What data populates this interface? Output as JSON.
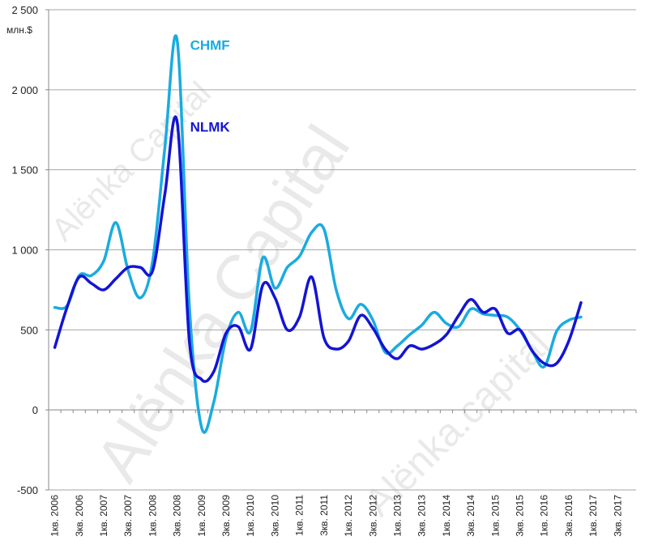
{
  "chart_data": {
    "type": "line",
    "unit_label": "млн.$",
    "watermark": [
      "Alёnka Capital",
      "Alёnka Capital",
      "Alёnka.capital"
    ],
    "ylim": [
      -500,
      2500
    ],
    "y_ticks": [
      -500,
      0,
      500,
      1000,
      1500,
      2000,
      2500
    ],
    "y_tick_labels": [
      "-500",
      "0",
      "500",
      "1 000",
      "1 500",
      "2 000",
      "2 500"
    ],
    "categories": [
      "1кв. 2006",
      "3кв. 2006",
      "1кв. 2007",
      "3кв. 2007",
      "1кв. 2008",
      "3кв. 2008",
      "1кв. 2009",
      "3кв. 2009",
      "1кв. 2010",
      "3кв. 2010",
      "1кв. 2011",
      "3кв. 2011",
      "1кв. 2012",
      "3кв. 2012",
      "1кв. 2013",
      "3кв. 2013",
      "1кв. 2014",
      "3кв. 2014",
      "1кв. 2015",
      "3кв. 2015",
      "1кв. 2016",
      "3кв. 2016",
      "1кв. 2017",
      "3кв. 2017"
    ],
    "x_count": 48,
    "grid": "horizontal",
    "series": [
      {
        "name": "CHMF",
        "color": "#1aabe0",
        "x": [
          0,
          1,
          2,
          3,
          4,
          5,
          6,
          7,
          8,
          9,
          10,
          11,
          12,
          13,
          14,
          15,
          16,
          17,
          18,
          19,
          20,
          21,
          22,
          23,
          24,
          25,
          26,
          27,
          28,
          29,
          30,
          31,
          32,
          33,
          34,
          35,
          36,
          37,
          38,
          39,
          40,
          41,
          42,
          43
        ],
        "values": [
          640,
          650,
          840,
          840,
          930,
          1170,
          870,
          700,
          930,
          1640,
          2310,
          650,
          -110,
          50,
          450,
          610,
          490,
          950,
          760,
          890,
          960,
          1110,
          1130,
          750,
          570,
          660,
          560,
          360,
          400,
          470,
          530,
          610,
          540,
          520,
          630,
          600,
          590,
          580,
          500,
          370,
          270,
          490,
          560,
          580
        ]
      },
      {
        "name": "NLMK",
        "color": "#1414d4",
        "x": [
          0,
          1,
          2,
          3,
          4,
          5,
          6,
          7,
          8,
          9,
          10,
          11,
          12,
          13,
          14,
          15,
          16,
          17,
          18,
          19,
          20,
          21,
          22,
          23,
          24,
          25,
          26,
          27,
          28,
          29,
          30,
          31,
          32,
          33,
          34,
          35,
          36,
          37,
          38,
          39,
          40,
          41,
          42,
          43
        ],
        "values": [
          390,
          640,
          830,
          790,
          750,
          820,
          890,
          890,
          870,
          1350,
          1800,
          430,
          190,
          240,
          480,
          520,
          380,
          780,
          700,
          500,
          580,
          830,
          450,
          380,
          430,
          590,
          510,
          380,
          320,
          400,
          380,
          410,
          470,
          590,
          690,
          610,
          630,
          480,
          500,
          370,
          290,
          290,
          430,
          670
        ]
      }
    ],
    "annotations": [
      {
        "text": "CHMF",
        "series": 0
      },
      {
        "text": "NLMK",
        "series": 1
      }
    ]
  }
}
